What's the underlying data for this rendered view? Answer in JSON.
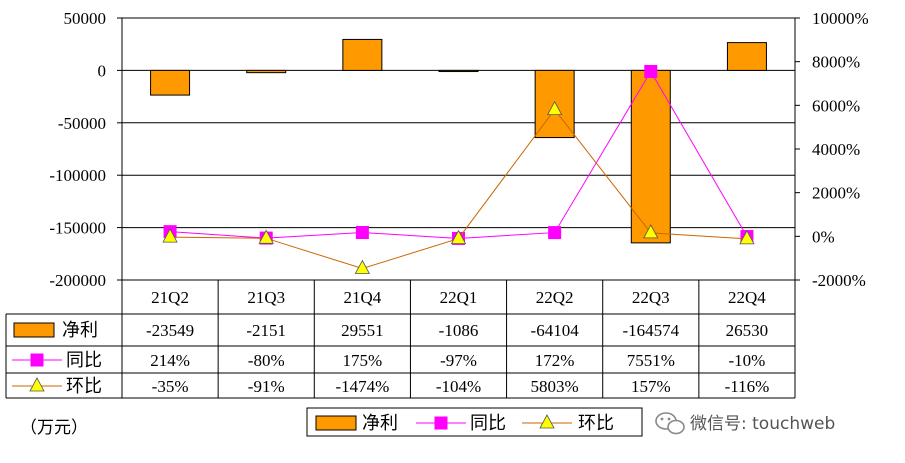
{
  "chart_data": {
    "type": "bar",
    "categories": [
      "21Q2",
      "21Q3",
      "21Q4",
      "22Q1",
      "22Q2",
      "22Q3",
      "22Q4"
    ],
    "series": [
      {
        "name": "净利",
        "type": "bar",
        "axis": "left",
        "values": [
          -23549,
          -2151,
          29551,
          -1086,
          -64104,
          -164574,
          26530
        ],
        "labels": [
          "-23549",
          "-2151",
          "29551",
          "-1086",
          "-64104",
          "-164574",
          "26530"
        ],
        "color": "#FF9900"
      },
      {
        "name": "同比",
        "type": "line",
        "axis": "right",
        "marker": "square",
        "values": [
          214,
          -80,
          175,
          -97,
          172,
          7551,
          -10
        ],
        "labels": [
          "214%",
          "-80%",
          "175%",
          "-97%",
          "172%",
          "7551%",
          "-10%"
        ],
        "color": "#FF00FF"
      },
      {
        "name": "环比",
        "type": "line",
        "axis": "right",
        "marker": "triangle",
        "values": [
          -35,
          -91,
          -1474,
          -104,
          5803,
          157,
          -116
        ],
        "labels": [
          "-35%",
          "-91%",
          "-1474%",
          "-104%",
          "5803%",
          "157%",
          "-116%"
        ],
        "color": "#CC6600",
        "marker_fill": "#FFFF00"
      }
    ],
    "y_left": {
      "ylim": [
        -200000,
        50000
      ],
      "ticks": [
        50000,
        0,
        -50000,
        -100000,
        -150000,
        -200000
      ],
      "tick_labels": [
        "50000",
        "0",
        "-50000",
        "-100000",
        "-150000",
        "-200000"
      ]
    },
    "y_right": {
      "ylim": [
        -2000,
        10000
      ],
      "ticks": [
        10000,
        8000,
        6000,
        4000,
        2000,
        0,
        -2000
      ],
      "tick_labels": [
        "10000%",
        "8000%",
        "6000%",
        "4000%",
        "2000%",
        "0%",
        "-2000%"
      ]
    },
    "grid": true,
    "legend": {
      "placement": "bottom-center"
    },
    "data_table": true
  },
  "unit_note": "（万元）",
  "watermark": "微信号: touchweb",
  "colors": {
    "bar": "#FF9900",
    "yoy": "#FF00FF",
    "qoq": "#CC6600",
    "marker_yellow": "#FFFF00"
  }
}
